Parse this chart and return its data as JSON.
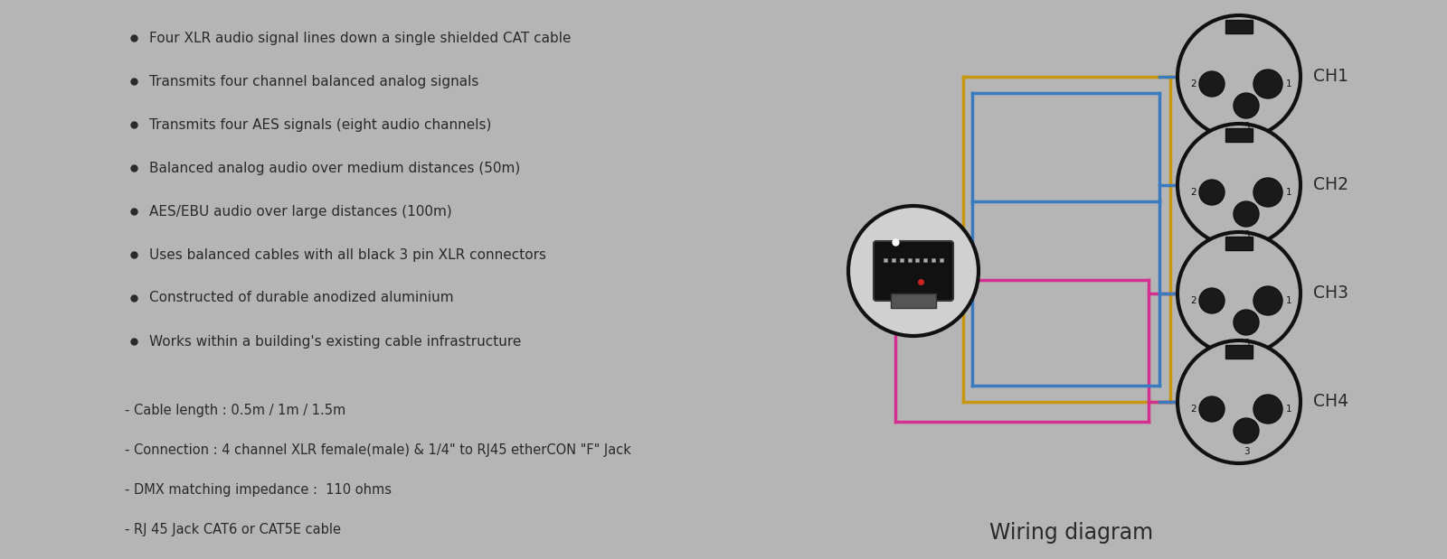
{
  "bg_color": "#b5b5b5",
  "title": "Wiring diagram",
  "title_fontsize": 17,
  "bullet_points": [
    "Four XLR audio signal lines down a single shielded CAT cable",
    "Transmits four channel balanced analog signals",
    "Transmits four AES signals (eight audio channels)",
    "Balanced analog audio over medium distances (50m)",
    "AES/EBU audio over large distances (100m)",
    "Uses balanced cables with all black 3 pin XLR connectors",
    "Constructed of durable anodized aluminium",
    "Works within a building's existing cable infrastructure"
  ],
  "extra_lines": [
    "- Cable length : 0.5m / 1m / 1.5m",
    "- Connection : 4 channel XLR female(male) & 1/4\" to RJ45 etherCON \"F\" Jack",
    "- DMX matching impedance :  110 ohms",
    "- RJ 45 Jack CAT6 or CAT5E cable"
  ],
  "channels": [
    "CH1",
    "CH2",
    "CH3",
    "CH4"
  ],
  "wire_colors": {
    "yellow": "#c8960a",
    "blue": "#3a7abf",
    "pink": "#d43090"
  },
  "text_color": "#2a2a2a",
  "connector_bg": "#111111"
}
